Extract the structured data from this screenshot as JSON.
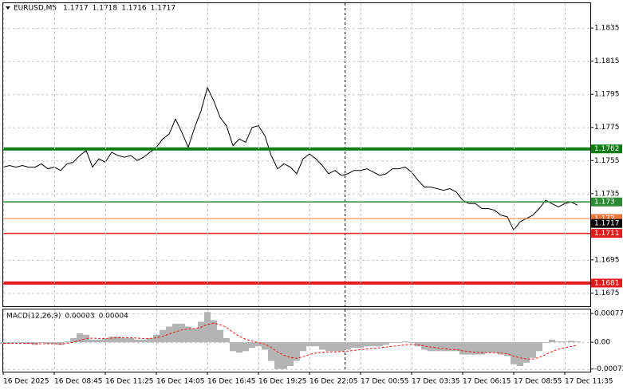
{
  "chart_data": [
    {
      "type": "line",
      "title": "EURUSD,M5",
      "readout": [
        1.1717,
        1.1718,
        1.1716,
        1.1717
      ],
      "categories": [
        "16 Dec 2025",
        null,
        null,
        null,
        null,
        null,
        null,
        null,
        "16 Dec 08:45",
        null,
        null,
        null,
        null,
        null,
        null,
        null,
        "16 Dec 11:25",
        null,
        null,
        null,
        null,
        null,
        null,
        null,
        "16 Dec 14:05",
        null,
        null,
        null,
        null,
        null,
        null,
        null,
        "16 Dec 16:45",
        null,
        null,
        null,
        null,
        null,
        null,
        null,
        "16 Dec 19:25",
        null,
        null,
        null,
        null,
        null,
        null,
        null,
        "16 Dec 22:05",
        null,
        null,
        null,
        null,
        null,
        null,
        null,
        "17 Dec 00:55",
        null,
        null,
        null,
        null,
        null,
        null,
        null,
        "17 Dec 03:35",
        null,
        null,
        null,
        null,
        null,
        null,
        null,
        "17 Dec 06:15",
        null,
        null,
        null,
        null,
        null,
        null,
        null,
        "17 Dec 08:55",
        null,
        null,
        null,
        null,
        null,
        null,
        null,
        "17 Dec 11:35",
        null,
        null
      ],
      "series": [
        {
          "color": "#000000",
          "values": [
            1.1751,
            1.1752,
            1.1751,
            1.1752,
            1.1751,
            1.1751,
            1.1753,
            1.175,
            1.1751,
            1.1749,
            1.1753,
            1.1754,
            1.1758,
            1.1761,
            1.1751,
            1.1756,
            1.1754,
            1.176,
            1.1758,
            1.1757,
            1.1758,
            1.1755,
            1.1757,
            1.176,
            1.1763,
            1.1768,
            1.1771,
            1.178,
            1.1772,
            1.1763,
            1.1775,
            1.1785,
            1.1799,
            1.1791,
            1.1781,
            1.1776,
            1.1764,
            1.1768,
            1.1766,
            1.1775,
            1.1776,
            1.177,
            1.1758,
            1.175,
            1.1753,
            1.1751,
            1.1747,
            1.1756,
            1.1759,
            1.1756,
            1.1752,
            1.1747,
            1.1749,
            1.1746,
            1.1747,
            1.1749,
            1.1749,
            1.175,
            1.1748,
            1.1746,
            1.1747,
            1.175,
            1.175,
            1.1751,
            1.1748,
            1.1743,
            1.1739,
            1.1739,
            1.1738,
            1.1737,
            1.1738,
            1.1736,
            1.1731,
            1.1729,
            1.1729,
            1.1726,
            1.1726,
            1.1725,
            1.1722,
            1.1721,
            1.1713,
            1.1718,
            1.172,
            1.1722,
            1.1726,
            1.1731,
            1.1729,
            1.1727,
            1.1729,
            1.173,
            1.1728
          ]
        }
      ],
      "ylim": [
        1.1667,
        1.185
      ],
      "yticks": [
        1.1835,
        1.1815,
        1.1795,
        1.1775,
        1.1755,
        1.1735,
        1.1695,
        1.1675
      ],
      "grid": true,
      "levels": [
        {
          "value": 1.1762,
          "color": "#0b7d12",
          "style": "thick"
        },
        {
          "value": 1.173,
          "color": "#2e8b35",
          "style": "thin"
        },
        {
          "value": 1.172,
          "color": "#e8783c",
          "style": "hair"
        },
        {
          "value": 1.1711,
          "color": "#e31b1b",
          "style": "thin"
        },
        {
          "value": 1.1681,
          "color": "#e31b1b",
          "style": "thick"
        }
      ],
      "current_price": 1.1717
    },
    {
      "type": "macd",
      "title": "MACD(12,26,9)",
      "readout": [
        3e-05,
        4e-05
      ],
      "series": [
        {
          "type": "bar",
          "color": "#b4b4b4",
          "values": [
            -4e-05,
            -4e-05,
            -2e-05,
            -2e-05,
            -4e-05,
            -7e-05,
            -2e-05,
            -4e-05,
            -4e-05,
            -7e-05,
            2e-05,
            0.00011,
            0.00024,
            0.0002,
            7e-05,
            7e-05,
            9e-05,
            0.00015,
            0.00015,
            0.00011,
            0.00011,
            7e-05,
            7e-05,
            0.00011,
            0.0002,
            0.00033,
            0.00042,
            0.0005,
            0.0005,
            0.00042,
            0.00037,
            0.00055,
            0.00081,
            0.00059,
            0.00033,
            0.00011,
            -0.00024,
            -0.00028,
            -0.00024,
            -0.00015,
            -0.00011,
            -0.0002,
            -0.0005,
            -0.00072,
            -0.00072,
            -0.00064,
            -0.0005,
            -0.00024,
            -0.00011,
            -0.00011,
            -0.0002,
            -0.00024,
            -0.00024,
            -0.00024,
            -0.0002,
            -0.00015,
            -0.00015,
            -0.00011,
            -0.00011,
            -0.00011,
            -7e-05,
            -2e-05,
            -2e-05,
            2e-05,
            -2e-05,
            -0.00011,
            -0.0002,
            -0.00024,
            -0.00024,
            -0.00024,
            -0.00024,
            -0.00024,
            -0.00033,
            -0.00033,
            -0.00033,
            -0.00033,
            -0.00028,
            -0.00028,
            -0.00033,
            -0.00037,
            -0.00059,
            -0.00064,
            -0.00055,
            -0.00042,
            -0.00024,
            -2e-05,
            7e-05,
            2e-05,
            2e-05,
            4e-05,
            2e-05
          ]
        },
        {
          "type": "line",
          "color": "#e31b1b",
          "values": [
            -3e-05,
            -3e-05,
            -3e-05,
            -3e-05,
            -3e-05,
            -4e-05,
            -4e-05,
            -4e-05,
            -4e-05,
            -5e-05,
            -3e-05,
            0.0,
            5e-05,
            0.0001,
            0.00011,
            0.0001,
            0.0001,
            0.00011,
            0.00012,
            0.00012,
            0.00012,
            0.00011,
            0.0001,
            0.0001,
            0.00012,
            0.00016,
            0.00022,
            0.00028,
            0.00033,
            0.00036,
            0.00037,
            0.0004,
            0.00048,
            0.00051,
            0.00047,
            0.0004,
            0.00027,
            0.00016,
            8e-05,
            3e-05,
            -1e-05,
            -5e-05,
            -0.00014,
            -0.00026,
            -0.00035,
            -0.00041,
            -0.00043,
            -0.00039,
            -0.00033,
            -0.00029,
            -0.00027,
            -0.00026,
            -0.00026,
            -0.00025,
            -0.00024,
            -0.00022,
            -0.0002,
            -0.00018,
            -0.00016,
            -0.00015,
            -0.00013,
            -0.00011,
            -9e-05,
            -7e-05,
            -6e-05,
            -7e-05,
            -0.0001,
            -0.00013,
            -0.00015,
            -0.00017,
            -0.00019,
            -0.0002,
            -0.00023,
            -0.00025,
            -0.00027,
            -0.00028,
            -0.00028,
            -0.00028,
            -0.00029,
            -0.00031,
            -0.00037,
            -0.00042,
            -0.00045,
            -0.00045,
            -0.00041,
            -0.00033,
            -0.00025,
            -0.00019,
            -0.00015,
            -0.00011,
            -8e-05
          ]
        }
      ],
      "ylim": [
        -0.00079,
        0.00088
      ],
      "yticks": [
        0.00077,
        {
          "value": 0,
          "label": "0.00"
        },
        -0.00072
      ],
      "grid": true
    }
  ]
}
